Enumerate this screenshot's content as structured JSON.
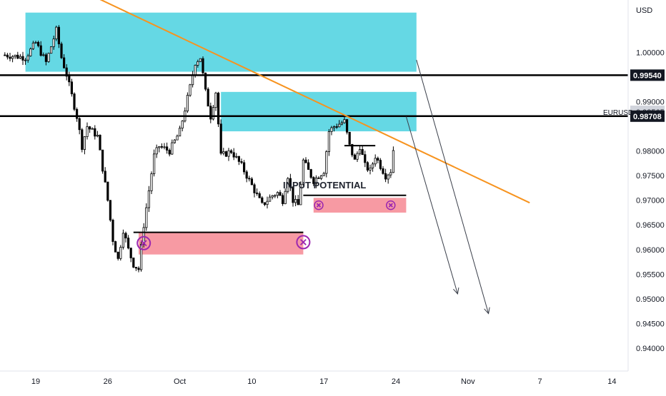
{
  "chart_data": {
    "type": "candlestick",
    "currency_label": "USD",
    "annotation": "INPUT POTENTIAL",
    "symbol": {
      "ticker": "EURUSD",
      "price": "0.98565"
    },
    "ylim": [
      0.9365,
      1.0095
    ],
    "y_ticks": [
      {
        "value": 1.0,
        "label": "1.00000"
      },
      {
        "value": 0.99,
        "label": "0.99000"
      },
      {
        "value": 0.98,
        "label": "0.98000"
      },
      {
        "value": 0.975,
        "label": "0.97500"
      },
      {
        "value": 0.97,
        "label": "0.97000"
      },
      {
        "value": 0.965,
        "label": "0.96500"
      },
      {
        "value": 0.96,
        "label": "0.96000"
      },
      {
        "value": 0.955,
        "label": "0.95500"
      },
      {
        "value": 0.95,
        "label": "0.95000"
      },
      {
        "value": 0.945,
        "label": "0.94500"
      },
      {
        "value": 0.94,
        "label": "0.94000"
      }
    ],
    "x_ticks": [
      {
        "date": "2022-09-19",
        "label": "19"
      },
      {
        "date": "2022-09-26",
        "label": "26"
      },
      {
        "date": "2022-10-03",
        "label": "Oct"
      },
      {
        "date": "2022-10-10",
        "label": "10"
      },
      {
        "date": "2022-10-17",
        "label": "17"
      },
      {
        "date": "2022-10-24",
        "label": "24"
      },
      {
        "date": "2022-10-31",
        "label": "Nov"
      },
      {
        "date": "2022-11-07",
        "label": "7"
      },
      {
        "date": "2022-11-14",
        "label": "14"
      }
    ],
    "price_lines": [
      {
        "price": 0.9954,
        "label": "0.99540"
      },
      {
        "price": 0.98708,
        "label": "0.98708"
      }
    ],
    "close_path": [
      [
        "2022-09-16",
        0.9995
      ],
      [
        "2022-09-18",
        0.999
      ],
      [
        "2022-09-19",
        1.002
      ],
      [
        "2022-09-20",
        0.998
      ],
      [
        "2022-09-21",
        1.0045
      ],
      [
        "2022-09-21T12",
        0.999
      ],
      [
        "2022-09-22",
        0.9955
      ],
      [
        "2022-09-23",
        0.987
      ],
      [
        "2022-09-23T12",
        0.981
      ],
      [
        "2022-09-24",
        0.985
      ],
      [
        "2022-09-25",
        0.983
      ],
      [
        "2022-09-26",
        0.97
      ],
      [
        "2022-09-26T12",
        0.962
      ],
      [
        "2022-09-27",
        0.958
      ],
      [
        "2022-09-27T12",
        0.964
      ],
      [
        "2022-09-28",
        0.96
      ],
      [
        "2022-09-28T12",
        0.957
      ],
      [
        "2022-09-29",
        0.956
      ],
      [
        "2022-09-29T12",
        0.965
      ],
      [
        "2022-09-30",
        0.972
      ],
      [
        "2022-09-30T12",
        0.979
      ],
      [
        "2022-10-01",
        0.981
      ],
      [
        "2022-10-02",
        0.98
      ],
      [
        "2022-10-03",
        0.984
      ],
      [
        "2022-10-04",
        0.993
      ],
      [
        "2022-10-04T12",
        0.998
      ],
      [
        "2022-10-05",
        0.999
      ],
      [
        "2022-10-05T12",
        0.992
      ],
      [
        "2022-10-06",
        0.987
      ],
      [
        "2022-10-06T12",
        0.992
      ],
      [
        "2022-10-07",
        0.979
      ],
      [
        "2022-10-08",
        0.98
      ],
      [
        "2022-10-09",
        0.977
      ],
      [
        "2022-10-10",
        0.973
      ],
      [
        "2022-10-11",
        0.969
      ],
      [
        "2022-10-12",
        0.971
      ],
      [
        "2022-10-12T12",
        0.9715
      ],
      [
        "2022-10-13",
        0.97
      ],
      [
        "2022-10-13T12",
        0.975
      ],
      [
        "2022-10-14",
        0.97
      ],
      [
        "2022-10-14T12",
        0.969
      ],
      [
        "2022-10-15",
        0.978
      ],
      [
        "2022-10-16",
        0.974
      ],
      [
        "2022-10-17",
        0.976
      ],
      [
        "2022-10-17T12",
        0.984
      ],
      [
        "2022-10-18",
        0.985
      ],
      [
        "2022-10-18T12",
        0.9855
      ],
      [
        "2022-10-19",
        0.986
      ],
      [
        "2022-10-19T12",
        0.981
      ],
      [
        "2022-10-20",
        0.978
      ],
      [
        "2022-10-20T12",
        0.981
      ],
      [
        "2022-10-21",
        0.977
      ],
      [
        "2022-10-21T12",
        0.976
      ],
      [
        "2022-10-22",
        0.979
      ],
      [
        "2022-10-23",
        0.975
      ],
      [
        "2022-10-23T12",
        0.976
      ],
      [
        "2022-10-24",
        0.9845
      ]
    ],
    "candle_vol": 0.0014,
    "zones": [
      {
        "kind": "resistance",
        "color": "#65d8e4",
        "from": "2022-09-18",
        "to": "2022-10-26",
        "top": 1.0081,
        "bottom": 0.9961
      },
      {
        "kind": "resistance",
        "color": "#65d8e4",
        "from": "2022-10-07",
        "to": "2022-10-26",
        "top": 0.992,
        "bottom": 0.984
      },
      {
        "kind": "support",
        "color": "#f79aa3",
        "from": "2022-09-29",
        "to": "2022-10-15",
        "top": 0.9635,
        "bottom": 0.959
      },
      {
        "kind": "support",
        "color": "#f79aa3",
        "from": "2022-10-16",
        "to": "2022-10-25",
        "top": 0.9705,
        "bottom": 0.9675
      }
    ],
    "horizontal_segments": [
      {
        "from": "2022-09-28T12",
        "to": "2022-10-15",
        "price": 0.9635
      },
      {
        "from": "2022-10-15",
        "to": "2022-10-25",
        "price": 0.971
      },
      {
        "from": "2022-10-19",
        "to": "2022-10-22",
        "price": 0.9811
      }
    ],
    "trendline": {
      "color": "#f7931e",
      "start": [
        "2022-09-22",
        1.014
      ],
      "end": [
        "2022-11-06",
        0.9695
      ]
    },
    "arrows": [
      {
        "start": [
          "2022-10-25",
          0.987
        ],
        "end": [
          "2022-10-30",
          0.951
        ]
      },
      {
        "start": [
          "2022-10-26",
          0.9985
        ],
        "end": [
          "2022-11-02",
          0.947
        ]
      }
    ],
    "markers": [
      {
        "date": "2022-09-29T12",
        "price": 0.9613
      },
      {
        "date": "2022-10-15",
        "price": 0.9615
      },
      {
        "date": "2022-10-16T12",
        "price": 0.969
      },
      {
        "date": "2022-10-23T12",
        "price": 0.969
      }
    ]
  }
}
